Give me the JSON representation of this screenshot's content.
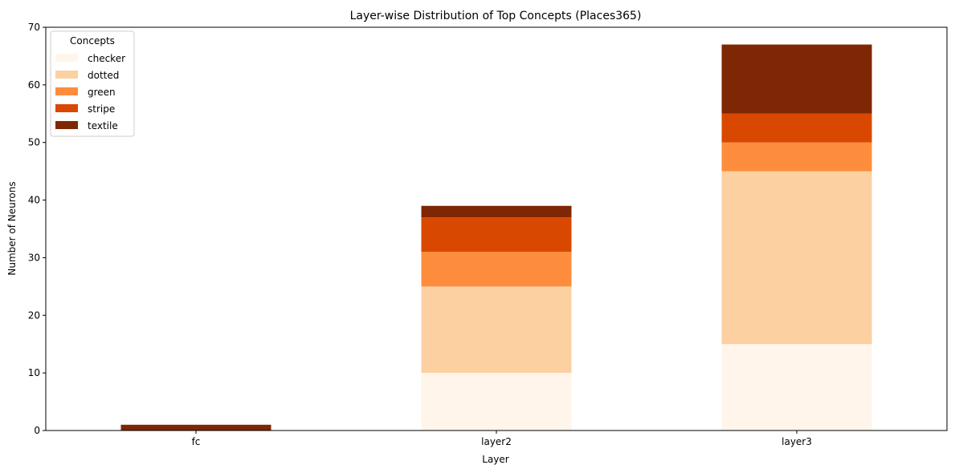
{
  "chart_data": {
    "type": "bar",
    "stacked": true,
    "title": "Layer-wise Distribution of Top Concepts (Places365)",
    "xlabel": "Layer",
    "ylabel": "Number of Neurons",
    "categories": [
      "fc",
      "layer2",
      "layer3"
    ],
    "ylim": [
      0,
      70
    ],
    "yticks": [
      0,
      10,
      20,
      30,
      40,
      50,
      60,
      70
    ],
    "grid": false,
    "legend": {
      "title": "Concepts",
      "placement": "top-left"
    },
    "series": [
      {
        "name": "checker",
        "color": "#fff5eb",
        "values": [
          0,
          10,
          15
        ]
      },
      {
        "name": "dotted",
        "color": "#fdd0a2",
        "values": [
          0,
          15,
          30
        ]
      },
      {
        "name": "green",
        "color": "#fd8d3c",
        "values": [
          0,
          6,
          5
        ]
      },
      {
        "name": "stripe",
        "color": "#d94801",
        "values": [
          0,
          6,
          5
        ]
      },
      {
        "name": "textile",
        "color": "#7f2704",
        "values": [
          1,
          2,
          12
        ]
      }
    ]
  }
}
